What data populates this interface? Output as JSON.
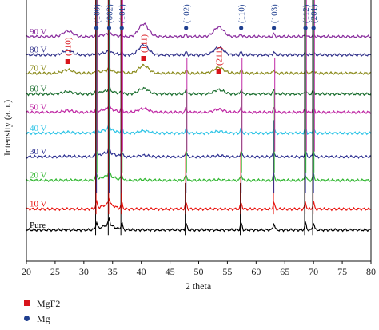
{
  "chart_data": {
    "type": "line",
    "xlabel": "2 theta",
    "ylabel": "Intensity (a.u.)",
    "xlim": [
      20,
      80
    ],
    "x_ticks": [
      "20",
      "25",
      "30",
      "35",
      "40",
      "45",
      "50",
      "55",
      "60",
      "65",
      "70",
      "75",
      "80"
    ],
    "grid": false,
    "legend_position": "bottom-left",
    "legend": [
      {
        "name": "MgF2",
        "marker": "square",
        "color": "#d8141b"
      },
      {
        "name": "Mg",
        "marker": "circle",
        "color": "#1f3f8f"
      }
    ],
    "series": [
      {
        "name": "Pure",
        "color": "#000000",
        "level": 0.12
      },
      {
        "name": "10 V",
        "color": "#e8140f",
        "level": 0.2
      },
      {
        "name": "20 V",
        "color": "#33b833",
        "level": 0.31
      },
      {
        "name": "30 V",
        "color": "#2e3192",
        "level": 0.4
      },
      {
        "name": "40 V",
        "color": "#2ec4e6",
        "level": 0.49
      },
      {
        "name": "50 V",
        "color": "#c02aa5",
        "level": 0.57
      },
      {
        "name": "60 V",
        "color": "#1a6e2e",
        "level": 0.64
      },
      {
        "name": "70 V",
        "color": "#8c8c1e",
        "level": 0.72
      },
      {
        "name": "80 V",
        "color": "#34348c",
        "level": 0.79
      },
      {
        "name": "90 V",
        "color": "#8a2e9e",
        "level": 0.86
      }
    ],
    "mg_peaks": [
      {
        "label": "(100)",
        "x": 32.2
      },
      {
        "label": "(002)",
        "x": 34.4
      },
      {
        "label": "(101)",
        "x": 36.6
      },
      {
        "label": "(102)",
        "x": 47.8
      },
      {
        "label": "(110)",
        "x": 57.4
      },
      {
        "label": "(103)",
        "x": 63.1
      },
      {
        "label": "(112)",
        "x": 68.6
      },
      {
        "label": "(201)",
        "x": 70.0
      }
    ],
    "mgf2_peaks": [
      {
        "label": "(110)",
        "x": 27.2
      },
      {
        "label": "(111)",
        "x": 40.4
      },
      {
        "label": "(211)",
        "x": 53.5
      }
    ]
  }
}
